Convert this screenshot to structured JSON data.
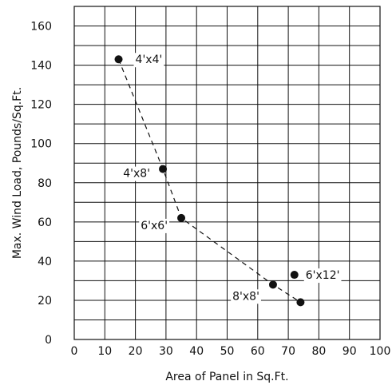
{
  "chart_data": {
    "type": "scatter",
    "xlabel": "Area of Panel in Sq.Ft.",
    "ylabel": "Max. Wind Load, Pounds/Sq.Ft.",
    "xlim": [
      0,
      100
    ],
    "ylim": [
      0,
      170
    ],
    "x_ticks": [
      0,
      10,
      20,
      30,
      40,
      50,
      60,
      70,
      80,
      90,
      100
    ],
    "y_ticks": [
      0,
      20,
      40,
      60,
      80,
      100,
      120,
      140,
      160
    ],
    "grid": true,
    "legend": "none",
    "colors": {
      "line": "#111111",
      "point": "#111111",
      "background": "#ffffff"
    },
    "points": [
      {
        "label": "4'x4'",
        "x": 14.5,
        "y": 143
      },
      {
        "label": "4'x8'",
        "x": 29,
        "y": 87
      },
      {
        "label": "6'x6'",
        "x": 35,
        "y": 62
      },
      {
        "label": "8'x8'",
        "x": 65,
        "y": 28
      },
      {
        "label": "6'x12'",
        "x": 72,
        "y": 33
      },
      {
        "label": "",
        "x": 74,
        "y": 19
      }
    ],
    "curve_order": [
      0,
      1,
      2,
      3,
      5
    ]
  }
}
